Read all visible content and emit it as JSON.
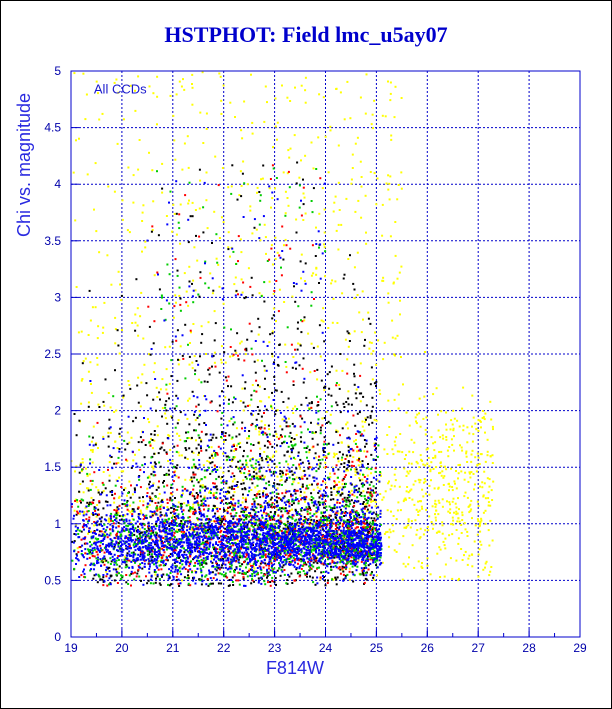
{
  "title": "HSTPHOT: Field lmc_u5ay07",
  "chart_data": {
    "type": "scatter",
    "title": "HSTPHOT: Field lmc_u5ay07",
    "xlabel": "F814W",
    "ylabel": "Chi vs. magnitude",
    "annotation": "All CCDs",
    "xlim": [
      19,
      29
    ],
    "ylim": [
      0,
      5
    ],
    "xticks": [
      "19",
      "20",
      "21",
      "22",
      "23",
      "24",
      "25",
      "26",
      "27",
      "28",
      "29"
    ],
    "yticks": [
      "0",
      "0.5",
      "1",
      "1.5",
      "2",
      "2.5",
      "3",
      "3.5",
      "4",
      "4.5",
      "5"
    ],
    "grid": true,
    "series": [
      {
        "color": "#ffff00",
        "description": "yellow points",
        "x_range": [
          19,
          27.3
        ],
        "core_chi": 0.85
      },
      {
        "color": "#000000",
        "description": "black points",
        "x_range": [
          19,
          25
        ],
        "core_chi": 0.85
      },
      {
        "color": "#00cc00",
        "description": "green points",
        "x_range": [
          19,
          25.1
        ],
        "core_chi": 0.85
      },
      {
        "color": "#ff0000",
        "description": "red points",
        "x_range": [
          19,
          25
        ],
        "core_chi": 0.85
      },
      {
        "color": "#0000ff",
        "description": "blue points",
        "x_range": [
          19,
          25.1
        ],
        "core_chi": 0.8
      }
    ]
  }
}
